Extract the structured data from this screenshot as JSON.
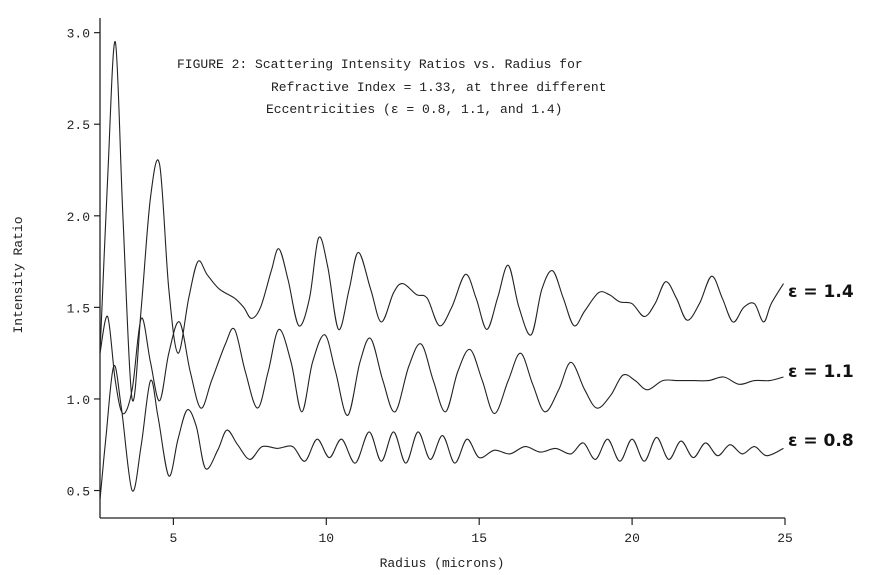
{
  "chart_data": {
    "type": "line",
    "title_lines": [
      "FIGURE 2: Scattering Intensity Ratios vs. Radius for",
      "Refractive Index = 1.33, at three different",
      "Eccentricities (ε  = 0.8, 1.1, and 1.4)"
    ],
    "xlabel": "Radius (microns)",
    "ylabel": "Intensity Ratio",
    "xlim": [
      2.6,
      25
    ],
    "ylim": [
      0.35,
      3.08
    ],
    "x_ticks": [
      5,
      10,
      15,
      20,
      25
    ],
    "x_tick_labels": [
      "5",
      "10",
      "15",
      "20",
      "25"
    ],
    "y_ticks": [
      0.5,
      1.0,
      1.5,
      2.0,
      2.5,
      3.0
    ],
    "y_tick_labels": [
      "0.5",
      "1.0",
      "1.5",
      "2.0",
      "2.5",
      "3.0"
    ],
    "grid": false,
    "series": [
      {
        "name": "ε = 1.4",
        "x": [
          2.6,
          2.85,
          3.1,
          3.35,
          3.65,
          3.95,
          4.25,
          4.55,
          4.85,
          5.15,
          5.5,
          5.8,
          6.1,
          6.5,
          7.0,
          7.3,
          7.55,
          7.85,
          8.2,
          8.45,
          8.75,
          9.1,
          9.45,
          9.75,
          10.05,
          10.4,
          10.75,
          11.05,
          11.45,
          11.8,
          12.2,
          12.5,
          12.95,
          13.3,
          13.7,
          14.1,
          14.55,
          14.9,
          15.25,
          15.6,
          15.95,
          16.3,
          16.7,
          17.05,
          17.4,
          17.75,
          18.1,
          18.45,
          18.9,
          19.25,
          19.6,
          20.0,
          20.4,
          20.75,
          21.1,
          21.45,
          21.8,
          22.2,
          22.6,
          22.95,
          23.3,
          23.65,
          24.0,
          24.3,
          24.55,
          24.95
        ],
        "y": [
          1.25,
          2.2,
          2.95,
          2.0,
          1.0,
          1.5,
          2.1,
          2.28,
          1.6,
          1.25,
          1.55,
          1.75,
          1.68,
          1.6,
          1.55,
          1.5,
          1.44,
          1.5,
          1.7,
          1.82,
          1.65,
          1.4,
          1.55,
          1.88,
          1.72,
          1.38,
          1.6,
          1.8,
          1.6,
          1.42,
          1.58,
          1.63,
          1.57,
          1.55,
          1.4,
          1.5,
          1.68,
          1.55,
          1.38,
          1.55,
          1.73,
          1.5,
          1.35,
          1.6,
          1.7,
          1.55,
          1.4,
          1.48,
          1.58,
          1.57,
          1.53,
          1.52,
          1.45,
          1.52,
          1.64,
          1.55,
          1.43,
          1.52,
          1.67,
          1.55,
          1.42,
          1.5,
          1.52,
          1.42,
          1.52,
          1.63
        ]
      },
      {
        "name": "ε = 1.1",
        "x": [
          2.6,
          2.85,
          3.1,
          3.35,
          3.65,
          3.95,
          4.25,
          4.55,
          4.85,
          5.2,
          5.55,
          5.9,
          6.25,
          6.7,
          7.0,
          7.35,
          7.75,
          8.1,
          8.45,
          8.85,
          9.2,
          9.55,
          9.95,
          10.3,
          10.7,
          11.1,
          11.45,
          11.85,
          12.25,
          12.7,
          13.1,
          13.5,
          13.9,
          14.3,
          14.7,
          15.1,
          15.5,
          15.95,
          16.35,
          16.75,
          17.15,
          17.6,
          18.0,
          18.45,
          18.85,
          19.3,
          19.7,
          20.1,
          20.5,
          21.0,
          21.5,
          22.0,
          22.5,
          23.0,
          23.5,
          24.0,
          24.5,
          24.95
        ],
        "y": [
          1.25,
          1.45,
          1.1,
          0.92,
          1.05,
          1.44,
          1.2,
          0.99,
          1.25,
          1.42,
          1.15,
          0.95,
          1.1,
          1.3,
          1.38,
          1.15,
          0.95,
          1.15,
          1.38,
          1.2,
          0.93,
          1.2,
          1.35,
          1.15,
          0.91,
          1.2,
          1.33,
          1.1,
          0.93,
          1.18,
          1.3,
          1.1,
          0.93,
          1.15,
          1.27,
          1.1,
          0.92,
          1.1,
          1.25,
          1.08,
          0.93,
          1.05,
          1.2,
          1.05,
          0.95,
          1.02,
          1.13,
          1.1,
          1.05,
          1.1,
          1.1,
          1.1,
          1.1,
          1.12,
          1.08,
          1.1,
          1.1,
          1.12
        ]
      },
      {
        "name": "ε = 0.8",
        "x": [
          2.6,
          2.8,
          3.05,
          3.3,
          3.65,
          3.95,
          4.25,
          4.5,
          4.85,
          5.15,
          5.45,
          5.75,
          6.05,
          6.45,
          6.75,
          7.1,
          7.5,
          7.9,
          8.4,
          8.9,
          9.3,
          9.7,
          10.1,
          10.5,
          10.95,
          11.4,
          11.8,
          12.2,
          12.6,
          13.0,
          13.4,
          13.8,
          14.2,
          14.6,
          15.0,
          15.5,
          16.0,
          16.5,
          17.0,
          17.5,
          18.0,
          18.4,
          18.8,
          19.2,
          19.6,
          20.0,
          20.4,
          20.8,
          21.2,
          21.6,
          22.0,
          22.4,
          22.8,
          23.2,
          23.6,
          24.0,
          24.4,
          24.95
        ],
        "y": [
          0.45,
          0.8,
          1.18,
          0.95,
          0.5,
          0.75,
          1.1,
          0.9,
          0.58,
          0.78,
          0.94,
          0.85,
          0.62,
          0.72,
          0.83,
          0.75,
          0.67,
          0.74,
          0.73,
          0.74,
          0.66,
          0.78,
          0.68,
          0.78,
          0.65,
          0.82,
          0.66,
          0.82,
          0.65,
          0.82,
          0.67,
          0.8,
          0.65,
          0.78,
          0.68,
          0.72,
          0.7,
          0.74,
          0.71,
          0.73,
          0.7,
          0.76,
          0.67,
          0.78,
          0.66,
          0.78,
          0.66,
          0.79,
          0.67,
          0.77,
          0.68,
          0.76,
          0.69,
          0.75,
          0.7,
          0.74,
          0.69,
          0.73
        ]
      }
    ]
  }
}
